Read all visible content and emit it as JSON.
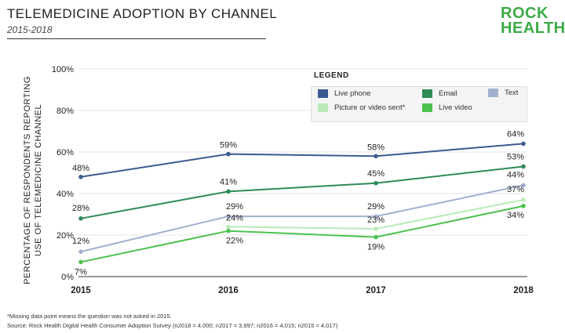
{
  "header": {
    "title": "TELEMEDICINE ADOPTION BY CHANNEL",
    "subtitle": "2015-2018"
  },
  "logo": {
    "line1": "ROCK",
    "line2": "HEALTH"
  },
  "footer": {
    "footnote": "*Missing data point means the question was not asked in 2015.",
    "source": "Source: Rock Health Digital Health Consumer Adoption Survey (n2018 = 4,000; n2017 = 3,997; n2016 = 4,015; n2015 = 4,017)"
  },
  "chart_data": {
    "type": "line",
    "title": "TELEMEDICINE ADOPTION BY CHANNEL",
    "subtitle": "2015-2018",
    "xlabel": "",
    "ylabel": "PERCENTAGE OF RESPONDENTS REPORTING USE OF TELEMEDICINE CHANNEL",
    "categories": [
      "2015",
      "2016",
      "2017",
      "2018"
    ],
    "ylim": [
      0,
      100
    ],
    "yticks": [
      0,
      20,
      40,
      60,
      80,
      100
    ],
    "ytick_labels": [
      "0%",
      "20%",
      "40%",
      "60%",
      "80%",
      "100%"
    ],
    "grid": true,
    "legend_title": "LEGEND",
    "legend_position": "top-right",
    "series": [
      {
        "name": "Live phone",
        "color": "#3c5a8f",
        "values": [
          48,
          59,
          58,
          64
        ],
        "labels": [
          "48%",
          "59%",
          "58%",
          "64%"
        ]
      },
      {
        "name": "Email",
        "color": "#2e8b57",
        "values": [
          28,
          41,
          45,
          53
        ],
        "labels": [
          "28%",
          "41%",
          "45%",
          "53%"
        ]
      },
      {
        "name": "Text",
        "color": "#a2b1cf",
        "values": [
          12,
          29,
          29,
          44
        ],
        "labels": [
          "12%",
          "29%",
          "29%",
          "44%"
        ]
      },
      {
        "name": "Picture or video sent*",
        "color": "#b9eab7",
        "values": [
          null,
          24,
          23,
          37
        ],
        "labels": [
          null,
          "24%",
          "23%",
          "37%"
        ]
      },
      {
        "name": "Live video",
        "color": "#4cc24e",
        "values": [
          7,
          22,
          19,
          34
        ],
        "labels": [
          "7%",
          "22%",
          "19%",
          "34%"
        ]
      }
    ]
  }
}
